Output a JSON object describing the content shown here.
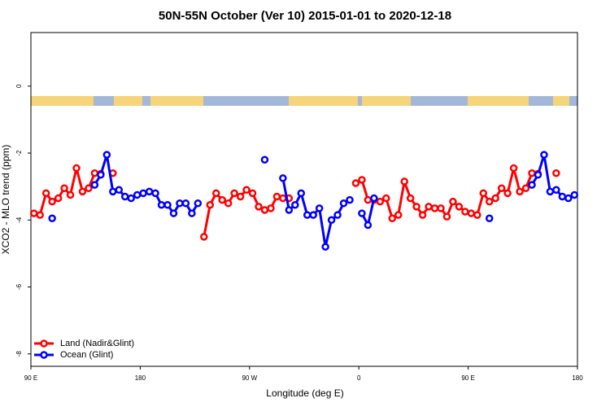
{
  "chart_data": {
    "type": "line",
    "title": "50N-55N October (Ver 10)   2015-01-01 to 2020-12-18",
    "x_label": "Longitude (deg E)",
    "y_label": "XCO2 - MLO trend (ppm)",
    "xlim": [
      90,
      540
    ],
    "xticks": [
      {
        "value": 90,
        "label": "90 E"
      },
      180,
      {
        "value": 270,
        "label": "90 W"
      },
      {
        "value": 360,
        "label": "0"
      },
      {
        "value": 450,
        "label": "90 E"
      },
      {
        "value": 540,
        "label": "180"
      }
    ],
    "ylim": [
      -8.37,
      1.6
    ],
    "yticks": [
      0,
      -2,
      -4,
      -6,
      -8
    ],
    "legend": "bottom-left",
    "x": [
      92.5,
      97.5,
      102.5,
      107.5,
      112.5,
      117.5,
      122.5,
      127.5,
      132.5,
      137.5,
      142.5,
      147.5,
      152.5,
      157.5,
      162.5,
      167.5,
      172.5,
      177.5,
      182.5,
      187.5,
      192.5,
      197.5,
      202.5,
      207.5,
      212.5,
      217.5,
      222.5,
      227.5,
      232.5,
      237.5,
      242.5,
      247.5,
      252.5,
      257.5,
      262.5,
      267.5,
      272.5,
      277.5,
      282.5,
      287.5,
      292.5,
      297.5,
      302.5,
      307.5,
      312.5,
      317.5,
      322.5,
      327.5,
      332.5,
      337.5,
      342.5,
      347.5,
      352.5,
      357.5,
      362.5,
      367.5,
      372.5,
      377.5,
      382.5,
      387.5,
      392.5,
      397.5,
      402.5,
      407.5,
      412.5,
      417.5,
      422.5,
      427.5,
      432.5,
      437.5,
      442.5,
      447.5,
      452.5,
      457.5,
      462.5,
      467.5,
      472.5,
      477.5,
      482.5,
      487.5,
      492.5,
      497.5,
      502.5,
      507.5,
      512.5,
      517.5,
      522.5,
      527.5,
      532.5,
      537.5
    ],
    "series": [
      {
        "name": "Land (Nadir&Glint)",
        "color": "#ff0000",
        "values": [
          -3.8,
          -3.85,
          -3.2,
          -3.45,
          -3.35,
          -3.05,
          -3.25,
          -2.45,
          -3.15,
          -3.05,
          -2.6,
          -2.62,
          null,
          -2.6,
          null,
          null,
          null,
          null,
          null,
          null,
          null,
          null,
          null,
          null,
          null,
          null,
          null,
          null,
          -4.5,
          -3.55,
          -3.2,
          -3.4,
          -3.5,
          -3.2,
          -3.3,
          -3.1,
          -3.2,
          -3.6,
          -3.7,
          -3.65,
          -3.3,
          -3.35,
          -3.35,
          null,
          null,
          null,
          null,
          null,
          null,
          null,
          null,
          null,
          null,
          -2.9,
          -2.8,
          -3.4,
          -3.4,
          -3.45,
          -3.35,
          -3.95,
          -3.85,
          -2.85,
          -3.35,
          -3.6,
          -3.85,
          -3.6,
          -3.65,
          -3.65,
          -3.9,
          -3.45,
          -3.6,
          -3.75,
          -3.8,
          -3.85,
          -3.2,
          -3.45,
          -3.35,
          -3.05,
          -3.2,
          -2.45,
          -3.15,
          -3.05,
          -2.6,
          -2.62,
          null,
          null,
          -2.6,
          null,
          null,
          null
        ]
      },
      {
        "name": "Ocean (Glint)",
        "color": "#0000ff",
        "values": [
          null,
          null,
          null,
          -3.95,
          null,
          null,
          null,
          null,
          null,
          null,
          -2.95,
          -2.65,
          -2.05,
          -3.15,
          -3.1,
          -3.3,
          -3.35,
          -3.25,
          -3.2,
          -3.15,
          -3.2,
          -3.55,
          -3.55,
          -3.8,
          -3.5,
          -3.5,
          -3.8,
          -3.5,
          null,
          null,
          null,
          null,
          null,
          null,
          null,
          null,
          null,
          null,
          -2.2,
          null,
          null,
          -2.75,
          -3.7,
          -3.55,
          -3.2,
          -3.85,
          -3.85,
          -3.65,
          -4.8,
          -4.0,
          -3.85,
          -3.5,
          -3.4,
          null,
          -3.8,
          -4.15,
          -3.35,
          null,
          null,
          null,
          null,
          null,
          null,
          null,
          null,
          null,
          null,
          null,
          null,
          null,
          null,
          null,
          null,
          null,
          null,
          -3.95,
          null,
          null,
          null,
          null,
          null,
          null,
          -2.95,
          -2.65,
          -2.05,
          -3.15,
          -3.1,
          -3.3,
          -3.35,
          -3.25
        ]
      }
    ]
  }
}
